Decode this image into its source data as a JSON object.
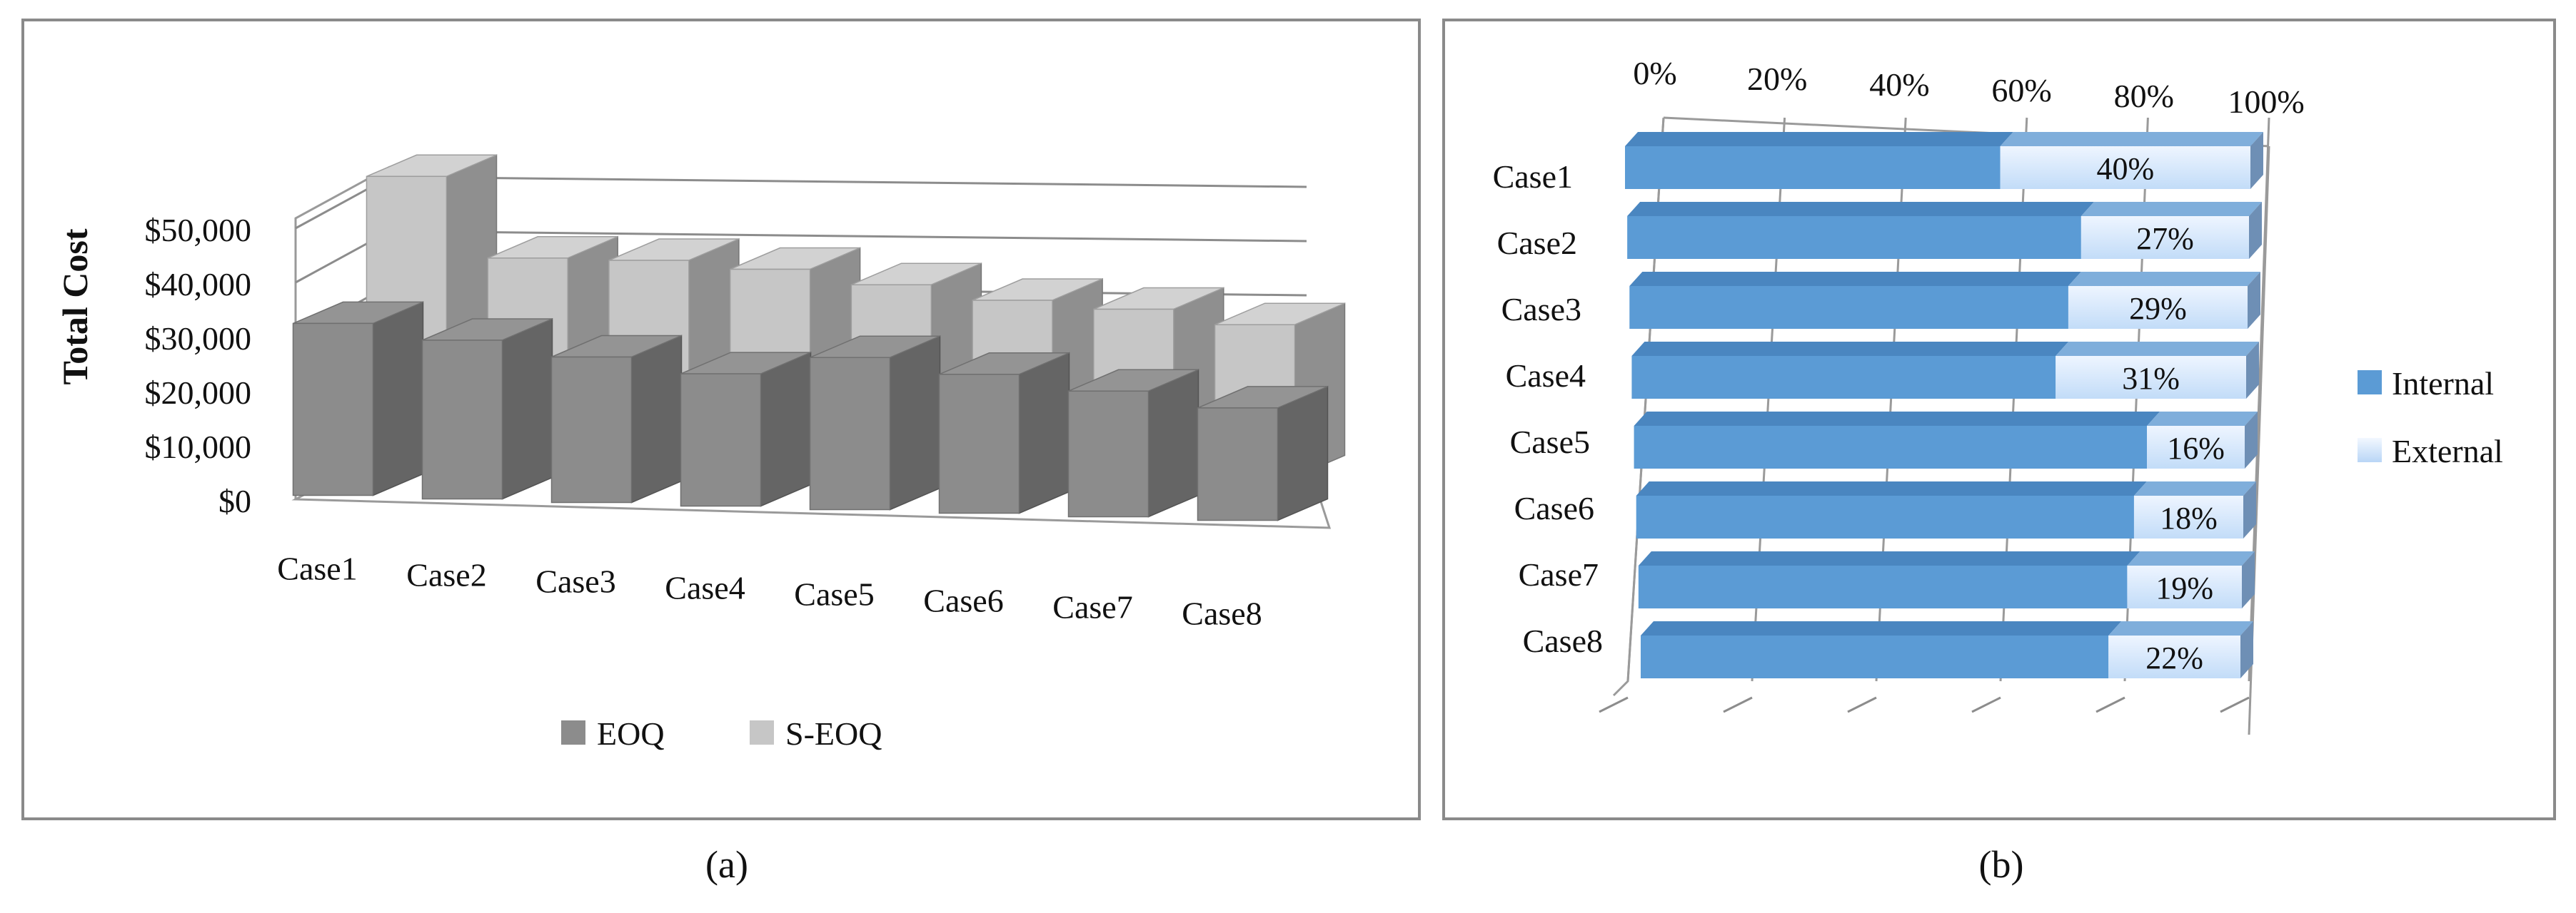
{
  "panels": [
    {
      "caption": "(a)"
    },
    {
      "caption": "(b)"
    }
  ],
  "chart_data": [
    {
      "type": "bar",
      "subtype": "3d-clustered-column",
      "title": "",
      "xlabel": "",
      "ylabel": "Total Cost",
      "categories": [
        "Case1",
        "Case2",
        "Case3",
        "Case4",
        "Case5",
        "Case6",
        "Case7",
        "Case8"
      ],
      "series": [
        {
          "name": "EOQ",
          "color": "#8c8c8c",
          "values": [
            26000,
            24000,
            22000,
            20000,
            23000,
            21000,
            19000,
            17000
          ]
        },
        {
          "name": "S-EOQ",
          "color": "#c6c6c6",
          "values": [
            43000,
            31000,
            31000,
            30000,
            28000,
            26000,
            25000,
            23000
          ]
        }
      ],
      "yticks": [
        "$0",
        "$10,000",
        "$20,000",
        "$30,000",
        "$40,000",
        "$50,000"
      ],
      "ylim": [
        0,
        50000
      ],
      "grid": true,
      "legend": "bottom"
    },
    {
      "type": "bar",
      "subtype": "3d-100%-stacked-horizontal-bar",
      "title": "",
      "categories": [
        "Case1",
        "Case2",
        "Case3",
        "Case4",
        "Case5",
        "Case6",
        "Case7",
        "Case8"
      ],
      "series": [
        {
          "name": "Internal",
          "color": "#5b9bd5",
          "values": [
            60,
            73,
            71,
            69,
            84,
            82,
            81,
            78
          ]
        },
        {
          "name": "External",
          "color": "#d6e8fb",
          "values": [
            40,
            27,
            29,
            31,
            16,
            18,
            19,
            22
          ]
        }
      ],
      "data_labels": [
        "40%",
        "27%",
        "29%",
        "31%",
        "16%",
        "18%",
        "19%",
        "22%"
      ],
      "xticks": [
        "0%",
        "20%",
        "40%",
        "60%",
        "80%",
        "100%"
      ],
      "xlim": [
        0,
        100
      ],
      "grid": true,
      "legend": "right"
    }
  ]
}
